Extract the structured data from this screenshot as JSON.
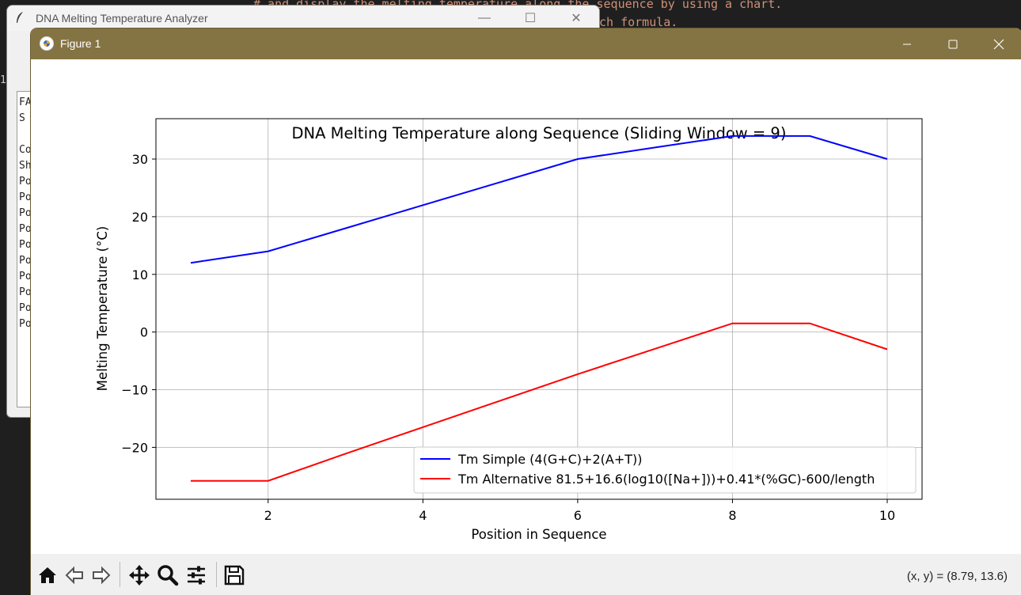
{
  "editor": {
    "line1": "# and display the melting temperature along the sequence by using a chart.",
    "line2": "ch formula.",
    "gutter_char": "1"
  },
  "analyzer_window": {
    "title": "DNA Melting Temperature Analyzer",
    "text_lines": [
      "FA",
      "S",
      "",
      "Co",
      "Sh",
      "Po",
      "Po",
      "Po",
      "Po",
      "Po",
      "Po",
      "Po",
      "Po",
      "Po",
      "Po"
    ]
  },
  "figure_window": {
    "title": "Figure 1",
    "coords_readout": "(x, y) = (8.79, 13.6)"
  },
  "colors": {
    "figure_titlebar": "#857443",
    "series_simple": "#0000ff",
    "series_alt": "#ff0000"
  },
  "toolbar": {
    "icons": [
      "home-icon",
      "back-icon",
      "forward-icon",
      "pan-icon",
      "zoom-icon",
      "configure-subplots-icon",
      "save-icon"
    ]
  },
  "chart_data": {
    "type": "line",
    "title": "DNA Melting Temperature along Sequence (Sliding Window = 9)",
    "xlabel": "Position in Sequence",
    "ylabel": "Melting Temperature (°C)",
    "xlim": [
      0.55,
      10.45
    ],
    "ylim": [
      -29,
      37
    ],
    "xticks": [
      2,
      4,
      6,
      8,
      10
    ],
    "yticks": [
      -20,
      -10,
      0,
      10,
      20,
      30
    ],
    "ytick_labels": [
      "−20",
      "−10",
      "0",
      "10",
      "20",
      "30"
    ],
    "grid": true,
    "legend_position": "lower right",
    "x": [
      1,
      2,
      3,
      4,
      5,
      6,
      7,
      8,
      9,
      10
    ],
    "series": [
      {
        "name": "Tm Simple (4(G+C)+2(A+T))",
        "color": "#0000ff",
        "values": [
          12,
          14,
          18,
          22,
          26,
          30,
          32,
          34,
          34,
          30
        ]
      },
      {
        "name": "Tm Alternative 81.5+16.6(log10([Na+]))+0.41*(%GC)-600/length",
        "color": "#ff0000",
        "values": [
          -25.8,
          -25.8,
          -21.1,
          -16.5,
          -11.9,
          -7.3,
          -2.9,
          1.5,
          1.5,
          -3.0
        ]
      }
    ]
  }
}
